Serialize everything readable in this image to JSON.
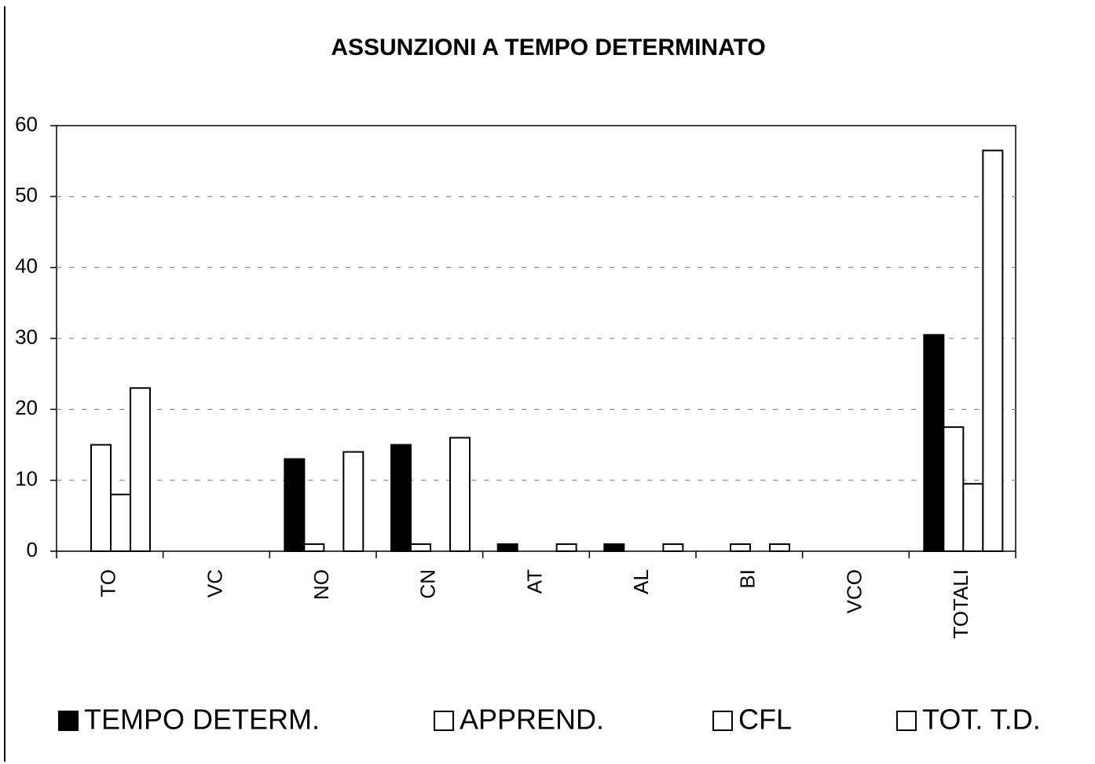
{
  "chart_data": {
    "type": "bar",
    "title": "ASSUNZIONI A TEMPO DETERMINATO",
    "categories": [
      "TO",
      "VC",
      "NO",
      "CN",
      "AT",
      "AL",
      "BI",
      "VCO",
      "TOTALI"
    ],
    "series": [
      {
        "name": "TEMPO DETERM.",
        "color": "#000000",
        "values": [
          0,
          0,
          13,
          15,
          1,
          1,
          0,
          0,
          30.5
        ]
      },
      {
        "name": "APPREND.",
        "color": "#ffffff",
        "values": [
          15,
          0,
          1,
          1,
          0,
          0,
          1,
          0,
          17.5
        ]
      },
      {
        "name": "CFL",
        "color": "#ffffff",
        "values": [
          8,
          0,
          0,
          0,
          0,
          0,
          0,
          0,
          9.5
        ]
      },
      {
        "name": "TOT. T.D.",
        "color": "#ffffff",
        "values": [
          23,
          0,
          14,
          16,
          1,
          1,
          1,
          0,
          56.5
        ]
      }
    ],
    "ylim": [
      0,
      60
    ],
    "yticks": [
      0,
      10,
      20,
      30,
      40,
      50,
      60
    ],
    "grid": true
  }
}
